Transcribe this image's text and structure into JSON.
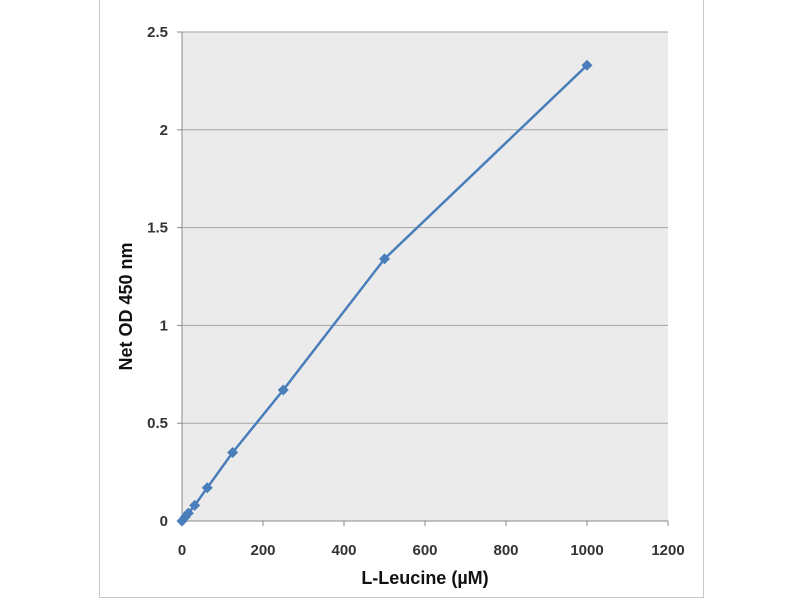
{
  "chart_data": {
    "type": "line",
    "title": "",
    "xlabel": "L-Leucine (µM)",
    "ylabel": "Net OD 450 nm",
    "xlim": [
      0,
      1200
    ],
    "ylim": [
      0,
      2.5
    ],
    "x_ticks": [
      "0",
      "200",
      "400",
      "600",
      "800",
      "1000",
      "1200"
    ],
    "y_ticks": [
      "0",
      "0.5",
      "1",
      "1.5",
      "2",
      "2.5"
    ],
    "grid": "horizontal",
    "legend": "none",
    "series": [
      {
        "x": [
          0,
          7.8,
          15.6,
          31.25,
          62.5,
          125,
          250,
          500,
          1000
        ],
        "y": [
          0.0,
          0.02,
          0.04,
          0.08,
          0.17,
          0.35,
          0.67,
          1.34,
          2.33
        ],
        "color": "#4a7ebb",
        "marker": "diamond"
      }
    ],
    "colors": {
      "plot_background": "#ebebeb",
      "gridline": "#a6a6a6",
      "series": "#4a7ebb"
    }
  }
}
